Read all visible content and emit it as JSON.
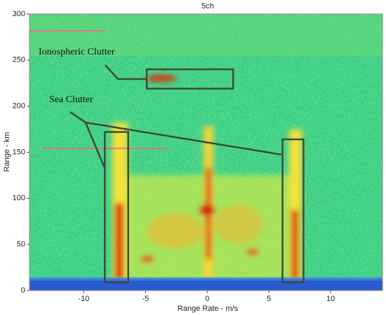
{
  "chart_data": {
    "type": "heatmap",
    "title": "5ch",
    "x_label": "Range Rate - m/s",
    "y_label": "Range - km",
    "xlim": [
      -14.4,
      14.2
    ],
    "ylim": [
      0,
      300
    ],
    "xticks": [
      -10,
      -5,
      0,
      5,
      10
    ],
    "yticks": [
      0,
      50,
      100,
      150,
      200,
      250,
      300
    ],
    "annotations": [
      {
        "text": "Ionospheric Clutter",
        "boxes": [
          {
            "x": [
              -4.9,
              2.1
            ],
            "y": [
              219,
              240
            ]
          }
        ]
      },
      {
        "text": "Sea Clutter",
        "boxes": [
          {
            "x": [
              -8.3,
              -6.4
            ],
            "y": [
              9,
              172
            ]
          },
          {
            "x": [
              6.1,
              7.8
            ],
            "y": [
              9,
              164
            ]
          }
        ]
      }
    ]
  }
}
